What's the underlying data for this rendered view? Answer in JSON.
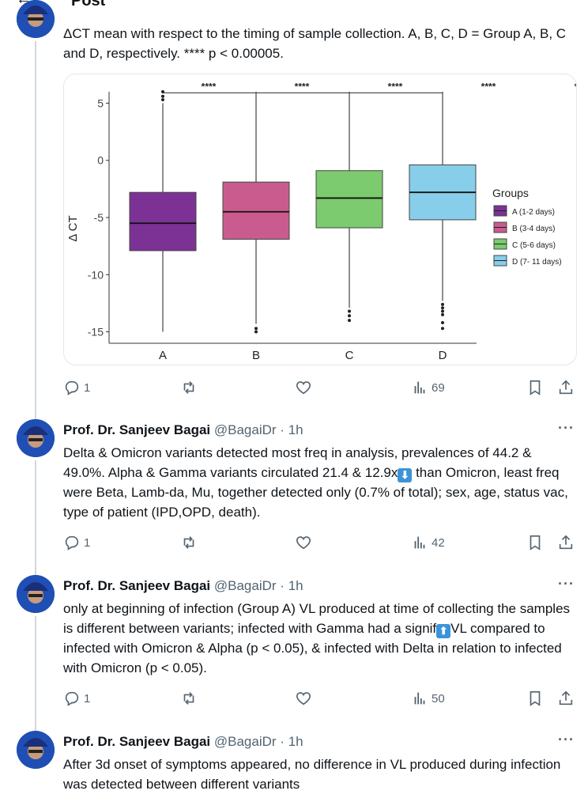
{
  "header": {
    "back_icon": "arrow-left-icon",
    "title": "Post"
  },
  "posts": [
    {
      "text": "ΔCT mean with respect to the timing of sample collection. A, B, C, D = Group A, B, C and D, respectively. **** p < 0.00005.",
      "replies": "1",
      "views": "69"
    },
    {
      "name": "Prof. Dr. Sanjeev Bagai",
      "handle": "@BagaiDr",
      "time": "1h",
      "text_a": "Delta & Omicron variants detected most freq in analysis, prevalences of 44.2 & 49.0%. Alpha & Gamma variants circulated 21.4 & 12.9x",
      "emoji": "⬇",
      "text_b": " than Omicron, least freq were Beta, Lamb-da, Mu, together detected only (0.7% of total); sex, age, status vac, type of patient (IPD,OPD, death).",
      "replies": "1",
      "views": "42"
    },
    {
      "name": "Prof. Dr. Sanjeev Bagai",
      "handle": "@BagaiDr",
      "time": "1h",
      "text_a": "only at beginning of infection (Group A) VL produced at time of collecting the samples is different between variants; infected with Gamma had a signif",
      "emoji": "⬆",
      "text_b": "VL compared to infected with Omicron & Alpha (p < 0.05), & infected with Delta in relation to infected with Omicron (p < 0.05).",
      "replies": "1",
      "views": "50"
    },
    {
      "name": "Prof. Dr. Sanjeev Bagai",
      "handle": "@BagaiDr",
      "time": "1h",
      "text": "After 3d onset of symptoms appeared, no difference in VL produced during infection was detected between different variants"
    }
  ],
  "icons": {
    "reply": "reply-icon",
    "repost": "repost-icon",
    "like": "heart-icon",
    "views": "views-icon",
    "bookmark": "bookmark-icon",
    "share": "share-icon",
    "more": "more-icon"
  },
  "colors": {
    "text": "#0f1419",
    "muted": "#536471",
    "divider": "#cfd9de"
  },
  "chart_data": {
    "type": "boxplot",
    "ylabel": "Δ CT",
    "ylim": [
      -16,
      6
    ],
    "yticks": [
      5,
      0,
      -5,
      -10,
      -15
    ],
    "categories": [
      "A",
      "B",
      "C",
      "D"
    ],
    "significance": [
      "****",
      "****",
      "****",
      "****",
      "****"
    ],
    "legend": {
      "title": "Groups",
      "position": "right"
    },
    "series": [
      {
        "name": "A (1-2 days)",
        "color": "#7b3294",
        "min": -15.0,
        "q1": -7.9,
        "median": -5.5,
        "q3": -2.8,
        "max": 5.0,
        "outliers": [
          5.3,
          5.6,
          6.0
        ]
      },
      {
        "name": "B (3-4 days)",
        "color": "#c95b8f",
        "min": -14.3,
        "q1": -6.9,
        "median": -4.5,
        "q3": -1.9,
        "max": 6.0,
        "outliers": [
          -14.7,
          -15.0
        ]
      },
      {
        "name": "C (5-6 days)",
        "color": "#7ccb6e",
        "min": -12.9,
        "q1": -5.9,
        "median": -3.3,
        "q3": -0.9,
        "max": 6.0,
        "outliers": [
          -13.2,
          -13.6,
          -14.0
        ]
      },
      {
        "name": "D (7- 11 days)",
        "color": "#87ceeb",
        "min": -12.3,
        "q1": -5.2,
        "median": -2.8,
        "q3": -0.4,
        "max": 6.0,
        "outliers": [
          -12.6,
          -12.9,
          -13.2,
          -13.5,
          -14.2,
          -14.7
        ]
      }
    ]
  }
}
